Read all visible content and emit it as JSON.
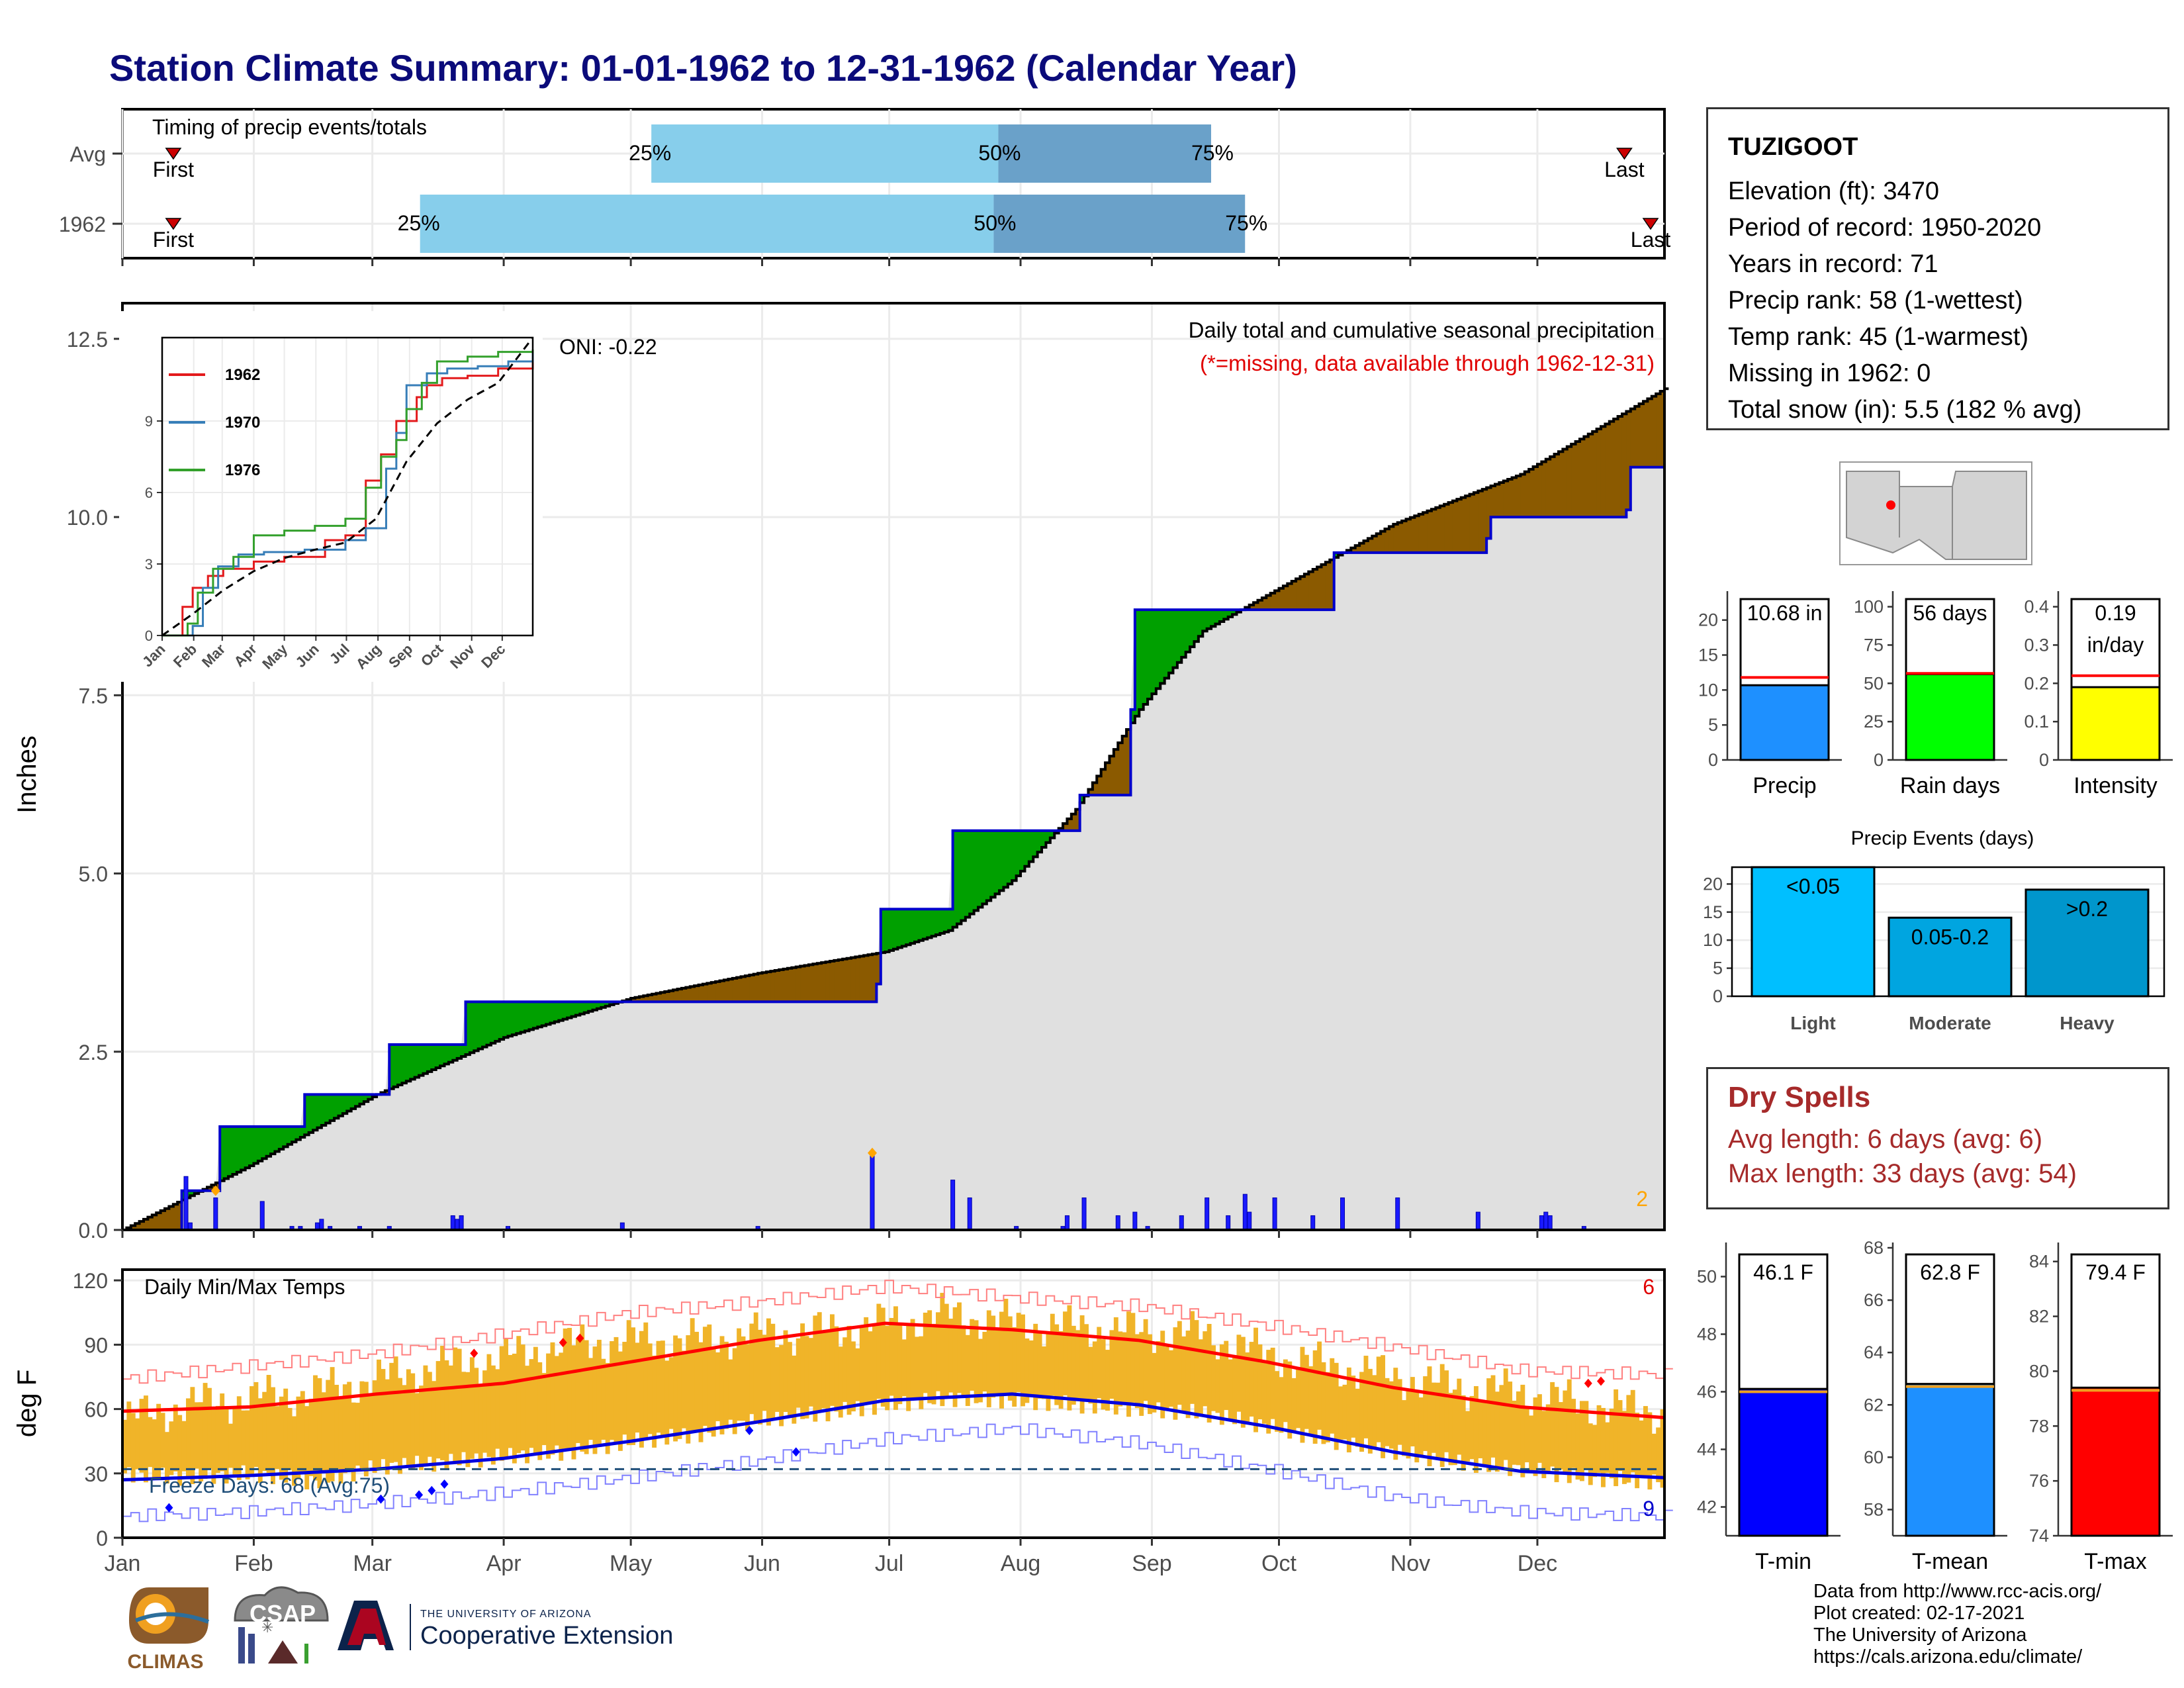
{
  "title": "Station Climate Summary: 01-01-1962 to 12-31-1962 (Calendar Year)",
  "timing": {
    "label": "Timing of precip events/totals",
    "rows": [
      {
        "name": "Avg",
        "q25": 0.343,
        "q50": 0.568,
        "q75": 0.706,
        "first": 0.033,
        "last": 0.974,
        "q25_label": "25%",
        "q50_label": "50%",
        "q75_label": "75%",
        "first_label": "First",
        "last_label": "Last"
      },
      {
        "name": "1962",
        "q25": 0.193,
        "q50": 0.565,
        "q75": 0.728,
        "first": 0.033,
        "last": 0.991,
        "q25_label": "25%",
        "q50_label": "50%",
        "q75_label": "75%",
        "first_label": "First",
        "last_label": "Last"
      }
    ],
    "colors": {
      "light": "#87ceeb",
      "dark": "#6aa1c9",
      "marker": "#cc0000"
    }
  },
  "station": {
    "name": "TUZIGOOT",
    "lines": [
      "Elevation (ft): 3470",
      "Period of record: 1950-2020",
      "Years in record: 71",
      "Precip rank: 58 (1-wettest)",
      "Temp rank: 45 (1-warmest)",
      "Missing in 1962: 0",
      "Total snow (in): 5.5 (182 % avg)"
    ]
  },
  "dry_spells": {
    "title": "Dry Spells",
    "avg_line": "Avg length: 6 days (avg: 6)",
    "max_line": "Max length: 33 days (avg: 54)"
  },
  "credits": {
    "lines": [
      "Data from http://www.rcc-acis.org/",
      "Plot created: 02-17-2021",
      "The University of Arizona",
      "https://cals.arizona.edu/climate/"
    ]
  },
  "logos": {
    "climas": "CLIMAS",
    "csap": "CSAP",
    "ua_top": "THE UNIVERSITY OF ARIZONA",
    "ua_bottom": "Cooperative Extension"
  },
  "months": [
    "Jan",
    "Feb",
    "Mar",
    "Apr",
    "May",
    "Jun",
    "Jul",
    "Aug",
    "Sep",
    "Oct",
    "Nov",
    "Dec"
  ],
  "chart_data": [
    {
      "type": "area",
      "name": "cumulative-precip",
      "title": "Daily total and cumulative seasonal precipitation",
      "subtitle": "(*=missing, data available through 1962-12-31)",
      "ylabel": "Inches",
      "ylim": [
        0,
        13
      ],
      "yticks": [
        0,
        2.5,
        5,
        7.5,
        10,
        12.5
      ],
      "ytick_labels": [
        "0.0",
        "2.5",
        "5.0",
        "7.5",
        "10.0",
        "12.5"
      ],
      "oni_label": "ONI: -0.22",
      "corner_label": "2",
      "observed_cumulative": {
        "days": [
          0,
          12,
          14,
          22,
          23,
          42,
          43,
          62,
          63,
          80,
          81,
          125,
          126,
          178,
          179,
          195,
          196,
          226,
          227,
          238,
          239,
          285,
          286,
          322,
          323,
          355,
          356,
          364
        ],
        "values": [
          0,
          0,
          0.55,
          0.55,
          1.45,
          1.45,
          1.9,
          1.9,
          2.6,
          2.6,
          3.2,
          3.2,
          3.2,
          3.45,
          4.5,
          4.5,
          5.6,
          6.1,
          6.1,
          7.3,
          8.7,
          8.7,
          9.5,
          9.7,
          10.0,
          10.1,
          10.7,
          10.68
        ]
      },
      "normal_cumulative": {
        "days": [
          0,
          30,
          60,
          90,
          120,
          150,
          180,
          195,
          210,
          225,
          240,
          255,
          270,
          285,
          300,
          330,
          364
        ],
        "values": [
          0,
          0.9,
          1.9,
          2.7,
          3.25,
          3.6,
          3.9,
          4.2,
          4.9,
          5.9,
          7.3,
          8.4,
          8.9,
          9.4,
          9.9,
          10.6,
          11.8
        ]
      },
      "daily_bars": {
        "days": [
          15,
          16,
          22,
          33,
          40,
          42,
          46,
          47,
          49,
          56,
          63,
          78,
          79,
          80,
          91,
          118,
          150,
          177,
          196,
          200,
          211,
          222,
          223,
          227,
          235,
          239,
          242,
          250,
          256,
          261,
          265,
          266,
          272,
          281,
          288,
          301,
          320,
          335,
          336,
          337,
          345
        ],
        "values": [
          0.75,
          0.1,
          0.45,
          0.4,
          0.05,
          0.05,
          0.1,
          0.15,
          0.05,
          0.05,
          0.05,
          0.2,
          0.15,
          0.2,
          0.05,
          0.1,
          0.05,
          1.05,
          0.7,
          0.45,
          0.05,
          0.05,
          0.2,
          0.45,
          0.2,
          0.25,
          0.05,
          0.2,
          0.45,
          0.2,
          0.5,
          0.25,
          0.45,
          0.2,
          0.45,
          0.45,
          0.25,
          0.2,
          0.25,
          0.2,
          0.05
        ]
      },
      "colors": {
        "surplus": "#00a000",
        "deficit": "#8b5a00",
        "observed_line": "#0000cc",
        "fill": "#e0e0e0",
        "bars": "#1a1aff",
        "marker": "#ffa500"
      }
    },
    {
      "type": "line",
      "name": "inset-cumulative",
      "series": [
        {
          "name": "1962",
          "color": "#e31a1c",
          "days": [
            0,
            20,
            30,
            45,
            60,
            90,
            120,
            160,
            180,
            200,
            215,
            230,
            250,
            260,
            275,
            300,
            330,
            364
          ],
          "values": [
            0,
            1.2,
            2.0,
            2.5,
            2.8,
            3.1,
            3.3,
            4.0,
            4.2,
            6.5,
            7.6,
            9.0,
            10.0,
            10.5,
            10.8,
            10.9,
            11.2,
            11.5
          ]
        },
        {
          "name": "1970",
          "color": "#377eb8",
          "days": [
            0,
            30,
            40,
            55,
            75,
            100,
            140,
            180,
            200,
            220,
            230,
            240,
            260,
            280,
            310,
            340,
            364
          ],
          "values": [
            0,
            0.4,
            2.0,
            2.9,
            3.4,
            3.5,
            3.6,
            4.0,
            4.5,
            7.0,
            8.5,
            10.5,
            11.0,
            11.2,
            11.3,
            11.5,
            11.9
          ]
        },
        {
          "name": "1976",
          "color": "#33a02c",
          "days": [
            0,
            25,
            35,
            50,
            70,
            90,
            120,
            150,
            180,
            200,
            215,
            230,
            240,
            255,
            270,
            300,
            330,
            364
          ],
          "values": [
            0,
            0.5,
            1.8,
            2.8,
            3.3,
            4.2,
            4.4,
            4.6,
            4.9,
            6.2,
            7.5,
            8.2,
            9.5,
            10.6,
            11.5,
            11.7,
            11.9,
            12.0
          ]
        },
        {
          "name": "",
          "color": "#000000",
          "dashed": true,
          "days": [
            0,
            30,
            60,
            90,
            120,
            150,
            180,
            210,
            240,
            270,
            300,
            330,
            364
          ],
          "values": [
            0,
            0.9,
            1.9,
            2.7,
            3.25,
            3.6,
            3.9,
            4.9,
            7.3,
            8.9,
            9.9,
            10.6,
            12.5
          ]
        }
      ],
      "ylim": [
        0,
        12.5
      ],
      "yticks": [
        0,
        3,
        6,
        9
      ],
      "ytick_labels": [
        "0",
        "3",
        "6",
        "9"
      ],
      "xtick_labels": [
        "Jan",
        "Feb",
        "Mar",
        "Apr",
        "May",
        "Jun",
        "Jul",
        "Aug",
        "Sep",
        "Oct",
        "Nov",
        "Dec"
      ]
    },
    {
      "type": "line",
      "name": "daily-temps",
      "title": "Daily Min/Max Temps",
      "ylabel": "deg F",
      "ylim": [
        0,
        125
      ],
      "yticks": [
        0,
        30,
        60,
        90,
        120
      ],
      "ytick_labels": [
        "0",
        "30",
        "60",
        "90",
        "120"
      ],
      "xtick_labels": [
        "Jan",
        "Feb",
        "Mar",
        "Apr",
        "May",
        "Jun",
        "Jul",
        "Aug",
        "Sep",
        "Oct",
        "Nov",
        "Dec"
      ],
      "freeze_label": "Freeze Days: 68 (Avg:75)",
      "freeze_line": 32,
      "corner_top": "6",
      "corner_bottom": "9",
      "normal_max": {
        "days": [
          0,
          30,
          60,
          90,
          120,
          150,
          180,
          210,
          240,
          270,
          300,
          330,
          364
        ],
        "values": [
          59,
          61,
          67,
          72,
          82,
          92,
          100,
          97,
          92,
          82,
          70,
          61,
          56
        ]
      },
      "normal_min": {
        "days": [
          0,
          30,
          60,
          90,
          120,
          150,
          180,
          210,
          240,
          270,
          300,
          330,
          364
        ],
        "values": [
          27,
          29,
          32,
          37,
          45,
          54,
          64,
          67,
          62,
          52,
          40,
          31,
          28
        ]
      },
      "record_max": {
        "days": [
          0,
          30,
          60,
          90,
          120,
          150,
          180,
          210,
          240,
          270,
          300,
          330,
          364
        ],
        "values": [
          74,
          80,
          86,
          95,
          105,
          110,
          117,
          112,
          108,
          99,
          89,
          78,
          76
        ]
      },
      "record_min": {
        "days": [
          0,
          30,
          60,
          90,
          120,
          150,
          180,
          210,
          240,
          270,
          300,
          330,
          364
        ],
        "values": [
          10,
          12,
          16,
          21,
          28,
          36,
          46,
          51,
          44,
          32,
          19,
          12,
          10
        ]
      },
      "observed_max": {
        "days": [
          0,
          15,
          30,
          45,
          60,
          75,
          90,
          105,
          120,
          135,
          150,
          165,
          180,
          195,
          210,
          225,
          240,
          255,
          270,
          285,
          300,
          315,
          330,
          345,
          364
        ],
        "values": [
          55,
          62,
          65,
          68,
          74,
          80,
          84,
          90,
          92,
          92,
          95,
          96,
          100,
          104,
          100,
          98,
          96,
          95,
          85,
          80,
          75,
          70,
          68,
          62,
          58
        ]
      },
      "observed_min": {
        "days": [
          0,
          15,
          30,
          45,
          60,
          75,
          90,
          105,
          120,
          135,
          150,
          165,
          180,
          195,
          210,
          225,
          240,
          255,
          270,
          285,
          300,
          315,
          330,
          345,
          364
        ],
        "values": [
          30,
          28,
          30,
          26,
          33,
          35,
          38,
          40,
          45,
          48,
          55,
          58,
          62,
          65,
          64,
          62,
          60,
          58,
          52,
          45,
          40,
          35,
          32,
          28,
          26
        ]
      },
      "colors": {
        "bars": "#f0b429",
        "normal_max": "#ff0000",
        "normal_min": "#0000dd",
        "record_max": "#ff8080",
        "record_min": "#8080ff",
        "freeze": "#1f4e79"
      }
    },
    {
      "type": "bar",
      "name": "precip-summary",
      "panels": [
        {
          "category": "Precip",
          "value": 10.68,
          "normal": 11.8,
          "label": "10.68 in",
          "label2": "",
          "ymax": 23,
          "yticks": [
            0,
            5,
            10,
            15,
            20
          ],
          "color": "#1e90ff"
        },
        {
          "category": "Rain days",
          "value": 56,
          "normal": 56.5,
          "label": "56 days",
          "label2": "",
          "ymax": 105,
          "yticks": [
            0,
            25,
            50,
            75,
            100
          ],
          "color": "#00ff00"
        },
        {
          "category": "Intensity",
          "value": 0.19,
          "normal": 0.22,
          "label": "0.19",
          "label2": "in/day",
          "ymax": 0.42,
          "yticks": [
            0,
            0.1,
            0.2,
            0.3,
            0.4
          ],
          "color": "#ffff00"
        }
      ]
    },
    {
      "type": "bar",
      "name": "precip-events",
      "title": "Precip Events (days)",
      "categories": [
        "Light",
        "Moderate",
        "Heavy"
      ],
      "values": [
        23,
        14,
        19
      ],
      "bar_labels": [
        "<0.05",
        "0.05-0.2",
        ">0.2"
      ],
      "ylim": [
        0,
        23
      ],
      "yticks": [
        0,
        5,
        10,
        15,
        20
      ],
      "colors": [
        "#00bfff",
        "#00a5e0",
        "#0096cc"
      ]
    },
    {
      "type": "bar",
      "name": "temp-summary",
      "panels": [
        {
          "category": "T-min",
          "value": 46.1,
          "normal": 46.0,
          "label": "46.1 F",
          "ymin": 41,
          "ymax": 51,
          "yticks": [
            42,
            44,
            46,
            48,
            50
          ],
          "color": "#0000ff"
        },
        {
          "category": "T-mean",
          "value": 62.8,
          "normal": 62.7,
          "label": "62.8 F",
          "ymin": 57,
          "ymax": 68,
          "yticks": [
            58,
            60,
            62,
            64,
            66,
            68
          ],
          "color": "#1e90ff"
        },
        {
          "category": "T-max",
          "value": 79.4,
          "normal": 79.3,
          "label": "79.4 F",
          "ymin": 74,
          "ymax": 84.5,
          "yticks": [
            74,
            76,
            78,
            80,
            82,
            84
          ],
          "color": "#ff0000"
        }
      ]
    }
  ]
}
